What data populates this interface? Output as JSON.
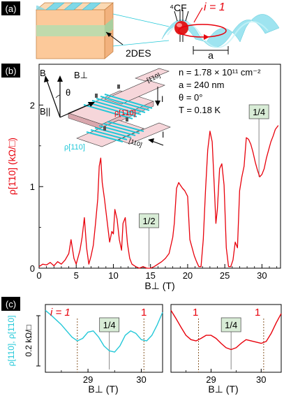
{
  "panel_a": {
    "label": "(a)",
    "cf_label": "⁴CF",
    "i_label": "i = 1",
    "twodes_label": "2DES",
    "period_label": "a"
  },
  "panel_b": {
    "label": "(b)",
    "params": [
      "n = 1.78 × 10¹¹ cm⁻²",
      "a = 240 nm",
      "θ = 0°",
      "T = 0.18 K"
    ],
    "inset": {
      "b_label": "B",
      "bperp_label": "B⊥",
      "bpar_label": "B||",
      "theta_label": "θ",
      "rho_red_label": "ρ[1̄10]",
      "rho_cyan_label": "ρ[110]",
      "i_top_label": "I",
      "i_bottom_label": "I",
      "box_top_label": "[1̄10]",
      "box_bottom_label": "[110]"
    },
    "callouts": [
      "1/2",
      "1/4"
    ],
    "xlabel": "B⊥ (T)",
    "ylabel": "ρ[1̄10] (kΩ/□)",
    "xticks": [
      "0",
      "5",
      "10",
      "15",
      "20",
      "25",
      "30"
    ],
    "yticks": [
      "0",
      "1",
      "2"
    ]
  },
  "panel_c": {
    "label": "(c)",
    "ylabel_rho": "ρ[110], ρ[1̄10]",
    "ylabel_scale": "0.2 kΩ/□",
    "left": {
      "callout": "1/4",
      "i_left": "i = 1",
      "i_right": "1",
      "xticks": [
        "29",
        "30"
      ],
      "xlabel": "B⊥ (T)"
    },
    "right": {
      "callout": "1/4",
      "i_left": "1",
      "i_right": "1",
      "xticks": [
        "29",
        "30"
      ],
      "xlabel": "B⊥ (T)"
    }
  },
  "colors": {
    "red": "#e8000b",
    "cyan": "#23c8d8",
    "callout_fill": "#d8ecd6"
  },
  "chart_data": [
    {
      "type": "line",
      "panel": "b",
      "xlabel": "B⊥ (T)",
      "ylabel": "ρ[1̄10] (kΩ/□)",
      "xlim": [
        0,
        32.5
      ],
      "ylim": [
        0,
        2.5
      ],
      "series": [
        {
          "x": [
            0,
            0.5,
            1,
            1.5,
            2,
            2.5,
            3,
            3.5,
            4,
            4.3,
            4.7,
            5,
            5.5,
            5.8,
            6.1,
            6.4,
            6.7,
            7,
            7.3,
            7.6,
            7.9,
            8.1,
            8.3,
            8.5,
            8.8,
            9.1,
            9.5,
            9.8,
            10,
            10.2,
            10.5,
            10.8,
            11.1,
            11.3,
            11.6,
            11.9,
            12.2,
            12.5,
            13,
            13.5,
            14,
            14.5,
            15,
            15.5,
            16,
            16.5,
            17,
            17.5,
            18,
            18.2,
            18.5,
            18.8,
            19,
            19.3,
            19.6,
            20,
            20.3,
            20.6,
            20.9,
            21.2,
            21.5,
            21.8,
            22.1,
            22.4,
            22.7,
            23,
            23.3,
            23.6,
            23.8,
            24,
            24.3,
            24.6,
            24.9,
            25.2,
            25.5,
            25.8,
            26.1,
            26.4,
            26.7,
            27,
            27.3,
            27.6,
            27.9,
            28.2,
            28.5,
            28.8,
            29.1,
            29.4,
            29.7,
            30,
            30.3,
            30.6,
            30.9,
            31.2,
            31.5,
            31.8,
            32.2
          ],
          "y": [
            0.02,
            0.05,
            0.04,
            0.07,
            0.03,
            0.08,
            0.05,
            0.1,
            0.18,
            0.35,
            0.12,
            0.05,
            0.22,
            0.38,
            0.62,
            0.25,
            0.05,
            0.15,
            0.28,
            0.55,
            0.85,
            1.25,
            1.35,
            1.05,
            0.85,
            0.62,
            0.32,
            0.45,
            0.42,
            0.72,
            0.6,
            0.35,
            0.22,
            0.55,
            0.62,
            0.3,
            0.12,
            0.05,
            0.02,
            0.0,
            0.02,
            0.0,
            0.0,
            0.02,
            0.05,
            0.08,
            0.12,
            0.18,
            0.38,
            0.55,
            0.98,
            1.05,
            1.02,
            0.98,
            0.95,
            0.88,
            0.35,
            0.25,
            0.15,
            0.08,
            0.02,
            0.02,
            0.35,
            0.95,
            1.45,
            1.68,
            1.55,
            0.98,
            0.55,
            0.72,
            1.22,
            1.28,
            1.02,
            0.25,
            0.02,
            0.02,
            0.1,
            0.32,
            0.25,
            0.95,
            1.12,
            1.25,
            1.6,
            1.58,
            1.52,
            1.42,
            1.3,
            1.2,
            1.12,
            1.15,
            1.22,
            1.35,
            1.45,
            1.55,
            1.62,
            1.7,
            1.75
          ]
        }
      ],
      "annotations": [
        {
          "label": "1/2",
          "x": 14.8
        },
        {
          "label": "1/4",
          "x": 29.6
        }
      ]
    },
    {
      "type": "line",
      "panel": "c-left",
      "xlabel": "B⊥ (T)",
      "xlim": [
        28.2,
        30.4
      ],
      "series": [
        {
          "x": [
            28.2,
            28.3,
            28.4,
            28.5,
            28.6,
            28.7,
            28.8,
            28.9,
            29.0,
            29.1,
            29.2,
            29.3,
            29.4,
            29.5,
            29.6,
            29.7,
            29.8,
            29.9,
            30.0,
            30.1,
            30.2,
            30.3,
            30.4
          ],
          "y": [
            0.95,
            0.88,
            0.8,
            0.72,
            0.62,
            0.52,
            0.46,
            0.5,
            0.6,
            0.62,
            0.52,
            0.38,
            0.3,
            0.28,
            0.38,
            0.55,
            0.62,
            0.58,
            0.48,
            0.46,
            0.55,
            0.72,
            0.92
          ]
        }
      ],
      "annotations": [
        {
          "label": "1/4",
          "x": 29.4
        },
        {
          "label": "i = 1",
          "x": 28.8
        },
        {
          "label": "1",
          "x": 30.05
        }
      ]
    },
    {
      "type": "line",
      "panel": "c-right",
      "xlabel": "B⊥ (T)",
      "xlim": [
        28.2,
        30.4
      ],
      "series": [
        {
          "x": [
            28.2,
            28.3,
            28.4,
            28.5,
            28.6,
            28.7,
            28.8,
            28.9,
            29.0,
            29.1,
            29.2,
            29.3,
            29.4,
            29.5,
            29.6,
            29.7,
            29.8,
            29.9,
            30.0,
            30.1,
            30.2,
            30.3,
            30.4
          ],
          "y": [
            0.95,
            0.82,
            0.68,
            0.55,
            0.48,
            0.46,
            0.5,
            0.55,
            0.55,
            0.5,
            0.42,
            0.35,
            0.32,
            0.35,
            0.42,
            0.48,
            0.46,
            0.44,
            0.42,
            0.45,
            0.58,
            0.75,
            0.9
          ]
        }
      ],
      "annotations": [
        {
          "label": "1/4",
          "x": 29.4
        },
        {
          "label": "1",
          "x": 28.75
        },
        {
          "label": "1",
          "x": 30.05
        }
      ]
    }
  ]
}
